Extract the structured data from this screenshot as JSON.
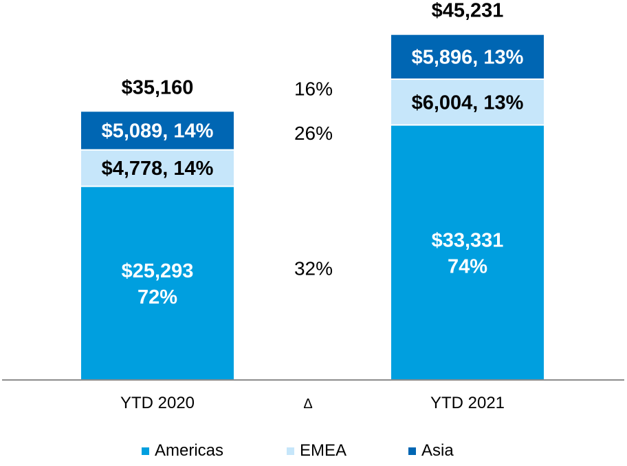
{
  "chart_data": {
    "type": "bar",
    "stacked": true,
    "categories": [
      "YTD 2020",
      "Δ",
      "YTD 2021"
    ],
    "series": [
      {
        "name": "Americas",
        "color": "#009fdf",
        "values": [
          25293,
          null,
          33331
        ],
        "labels": [
          "$25,293\n72%",
          null,
          "$33,331\n74%"
        ],
        "label_color": "#ffffff"
      },
      {
        "name": "EMEA",
        "color": "#c6e6fa",
        "values": [
          4778,
          null,
          6004
        ],
        "labels": [
          "$4,778, 14%",
          null,
          "$6,004, 13%"
        ],
        "label_color": "#000000"
      },
      {
        "name": "Asia",
        "color": "#0066b3",
        "values": [
          5089,
          null,
          5896
        ],
        "labels": [
          "$5,089, 14%",
          null,
          "$5,896, 13%"
        ],
        "label_color": "#ffffff"
      }
    ],
    "totals": [
      "$35,160",
      null,
      "$45,231"
    ],
    "delta_labels": {
      "Americas": "32%",
      "EMEA": "26%",
      "Asia": "16%"
    },
    "ylim": [
      0,
      48000
    ],
    "legend_position": "bottom"
  }
}
